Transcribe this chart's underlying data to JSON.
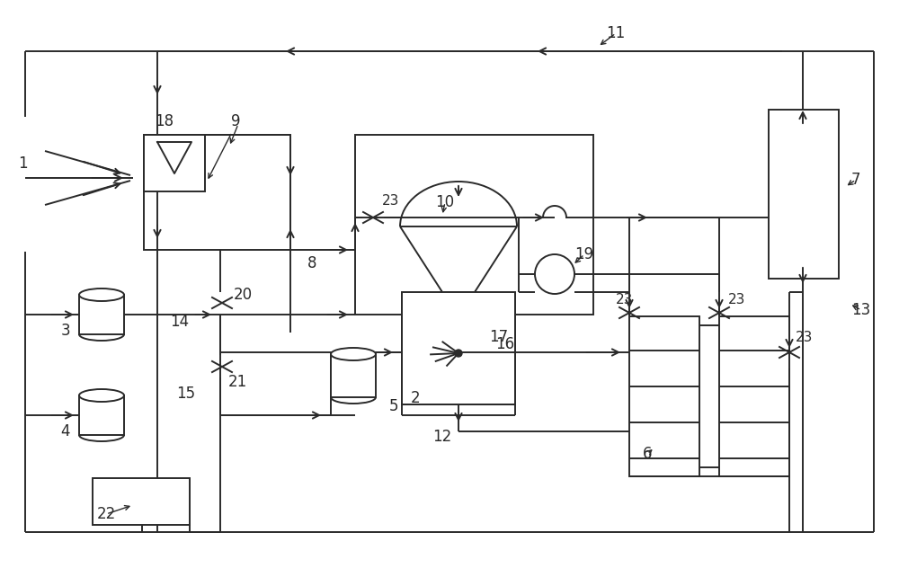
{
  "bg_color": "#ffffff",
  "line_color": "#2a2a2a",
  "figsize": [
    10.0,
    6.42
  ],
  "dpi": 100
}
